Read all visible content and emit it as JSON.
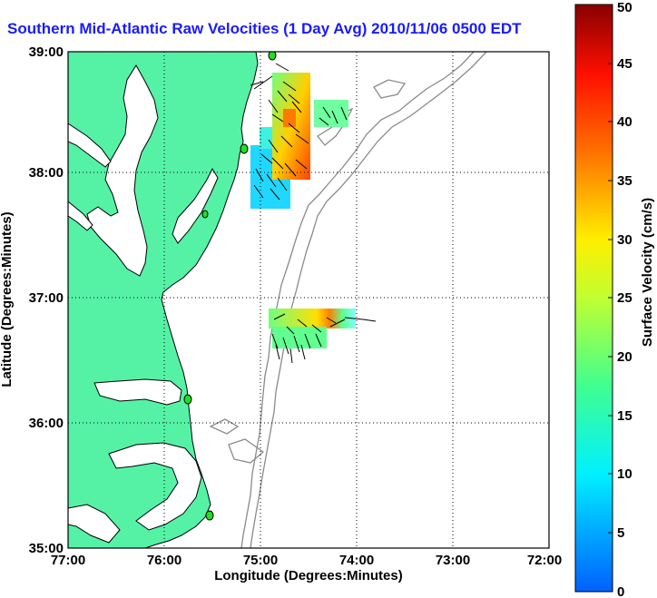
{
  "title": "Southern Mid-Atlantic Raw Velocities (1 Day Avg) 2010/11/06 0500 EDT",
  "xlabel": "Longitude (Degrees:Minutes)",
  "ylabel": "Latitude (Degrees:Minutes)",
  "colorbar_label": "Surface Velocity (cm/s)",
  "x_ticks": [
    "77:00",
    "76:00",
    "75:00",
    "74:00",
    "73:00",
    "72:00"
  ],
  "y_ticks": [
    "39:00",
    "38:00",
    "37:00",
    "36:00",
    "35:00"
  ],
  "colorbar_ticks": [
    "0",
    "5",
    "10",
    "15",
    "20",
    "25",
    "30",
    "35",
    "40",
    "45",
    "50"
  ],
  "colors": {
    "land": "#55f2a6",
    "coastline": "#000000",
    "bathymetry": "#8a8a8a",
    "title": "#1a1aff",
    "station": "#22dd22"
  },
  "chart_data": {
    "type": "heatmap",
    "xlim_deg": [
      -77,
      -72
    ],
    "ylim_deg": [
      35,
      39
    ],
    "colorbar_range_cm_s": [
      0,
      50
    ],
    "colormap": "jet",
    "grid": true,
    "station_markers": 5
  }
}
